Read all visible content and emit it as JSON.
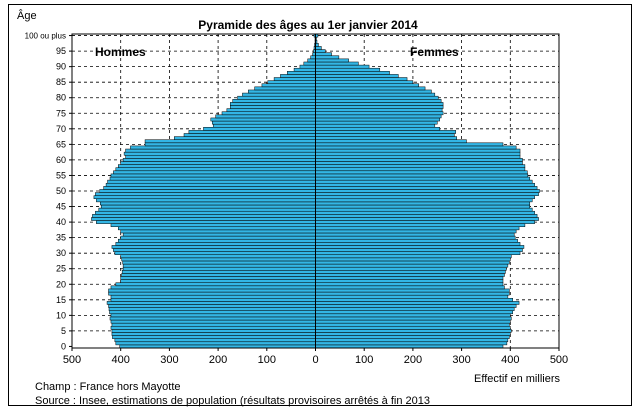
{
  "chart_data": {
    "type": "bar",
    "orientation": "horizontal",
    "title": "Pyramide des âges au 1er janvier 2014",
    "ylabel": "Âge",
    "xlabel": "Effectif en milliers",
    "xlim": [
      -500,
      500
    ],
    "ylim": [
      0,
      100
    ],
    "x_ticks": [
      "500",
      "400",
      "300",
      "200",
      "100",
      "0",
      "100",
      "200",
      "300",
      "400",
      "500"
    ],
    "y_ticks": [
      "0",
      "5",
      "10",
      "15",
      "20",
      "25",
      "30",
      "35",
      "40",
      "45",
      "50",
      "55",
      "60",
      "65",
      "70",
      "75",
      "80",
      "85",
      "90",
      "95",
      "100 ou plus"
    ],
    "grid": true,
    "bar_color": "#33B6E5",
    "series_labels": [
      "Hommes",
      "Femmes"
    ],
    "ages": [
      0,
      1,
      2,
      3,
      4,
      5,
      6,
      7,
      8,
      9,
      10,
      11,
      12,
      13,
      14,
      15,
      16,
      17,
      18,
      19,
      20,
      21,
      22,
      23,
      24,
      25,
      26,
      27,
      28,
      29,
      30,
      31,
      32,
      33,
      34,
      35,
      36,
      37,
      38,
      39,
      40,
      41,
      42,
      43,
      44,
      45,
      46,
      47,
      48,
      49,
      50,
      51,
      52,
      53,
      54,
      55,
      56,
      57,
      58,
      59,
      60,
      61,
      62,
      63,
      64,
      65,
      66,
      67,
      68,
      69,
      70,
      71,
      72,
      73,
      74,
      75,
      76,
      77,
      78,
      79,
      80,
      81,
      82,
      83,
      84,
      85,
      86,
      87,
      88,
      89,
      90,
      91,
      92,
      93,
      94,
      95,
      96,
      97,
      98,
      99,
      100
    ],
    "series": [
      {
        "name": "Hommes",
        "values": [
          402,
          410,
          412,
          417,
          418,
          418,
          420,
          418,
          420,
          422,
          420,
          423,
          424,
          425,
          428,
          420,
          420,
          425,
          425,
          420,
          410,
          400,
          400,
          398,
          397,
          395,
          395,
          396,
          398,
          400,
          412,
          415,
          418,
          410,
          405,
          400,
          395,
          400,
          405,
          420,
          450,
          460,
          458,
          452,
          445,
          440,
          442,
          450,
          455,
          452,
          443,
          435,
          430,
          427,
          422,
          420,
          415,
          410,
          405,
          400,
          395,
          390,
          393,
          390,
          380,
          350,
          350,
          290,
          270,
          260,
          230,
          210,
          212,
          215,
          205,
          192,
          182,
          175,
          175,
          170,
          160,
          150,
          138,
          125,
          110,
          98,
          85,
          72,
          58,
          44,
          32,
          24,
          16,
          10,
          6,
          4,
          3,
          2,
          1,
          1,
          3
        ]
      },
      {
        "name": "Femmes",
        "values": [
          385,
          393,
          395,
          398,
          400,
          402,
          400,
          398,
          400,
          402,
          400,
          405,
          408,
          412,
          418,
          405,
          395,
          398,
          398,
          388,
          385,
          385,
          385,
          388,
          390,
          392,
          395,
          398,
          400,
          402,
          420,
          425,
          428,
          420,
          415,
          410,
          408,
          412,
          418,
          430,
          450,
          458,
          455,
          450,
          445,
          440,
          440,
          445,
          450,
          458,
          460,
          455,
          450,
          445,
          440,
          436,
          435,
          430,
          430,
          425,
          425,
          420,
          420,
          420,
          412,
          385,
          310,
          290,
          285,
          288,
          255,
          245,
          250,
          255,
          258,
          262,
          260,
          262,
          262,
          258,
          252,
          245,
          238,
          225,
          212,
          200,
          188,
          170,
          152,
          132,
          110,
          88,
          68,
          48,
          33,
          20,
          12,
          6,
          3,
          2,
          5
        ]
      }
    ]
  },
  "notes": {
    "champ": "Champ : France hors Mayotte",
    "source": "Source : Insee, estimations de population (résultats provisoires arrêtés à fin 2013"
  }
}
